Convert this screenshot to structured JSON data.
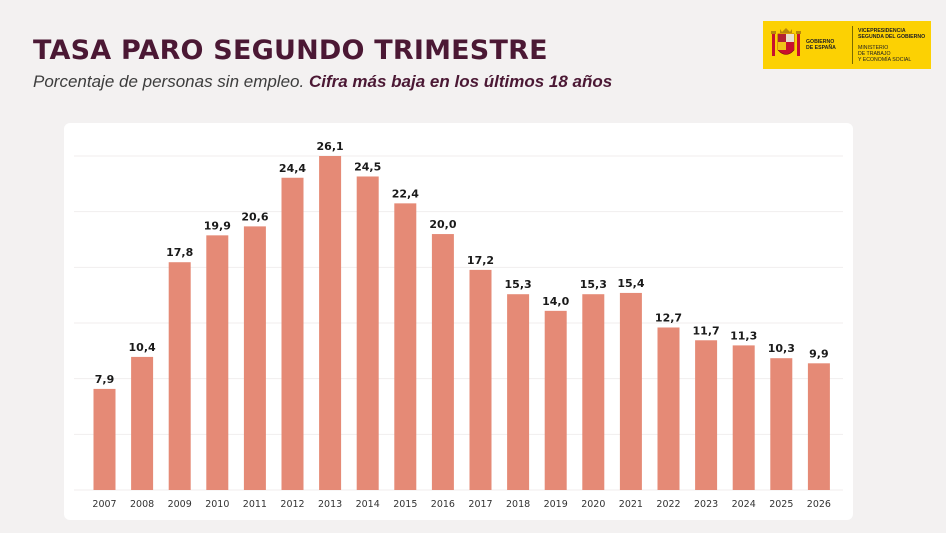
{
  "header": {
    "title": "TASA PARO SEGUNDO TRIMESTRE",
    "subtitle_plain": "Porcentaje de personas sin empleo.",
    "subtitle_bold": "Cifra más baja en los últimos 18 años"
  },
  "logo": {
    "left_line1": "GOBIERNO",
    "left_line2": "DE ESPAÑA",
    "right_line1": "VICEPRESIDENCIA",
    "right_line2": "SEGUNDA DEL GOBIERNO",
    "right_line3": "MINISTERIO",
    "right_line4": "DE TRABAJO",
    "right_line5": "Y ECONOMÍA SOCIAL",
    "background_color": "#fcd103"
  },
  "chart_data": {
    "type": "bar",
    "categories": [
      "2007",
      "2008",
      "2009",
      "2010",
      "2011",
      "2012",
      "2013",
      "2014",
      "2015",
      "2016",
      "2017",
      "2018",
      "2019",
      "2020",
      "2021",
      "2022",
      "2023",
      "2024",
      "2025",
      "2026"
    ],
    "values": [
      7.9,
      10.4,
      17.8,
      19.9,
      20.6,
      24.4,
      26.1,
      24.5,
      22.4,
      20.0,
      17.2,
      15.3,
      14.0,
      15.3,
      15.4,
      12.7,
      11.7,
      11.3,
      10.3,
      9.9
    ],
    "value_labels": [
      "7,9",
      "10,4",
      "17,8",
      "19,9",
      "20,6",
      "24,4",
      "26,1",
      "24,5",
      "22,4",
      "20,0",
      "17,2",
      "15,3",
      "14,0",
      "15,3",
      "15,4",
      "12,7",
      "11,7",
      "11,3",
      "10,3",
      "9,9"
    ],
    "ylim": [
      0,
      26.1
    ],
    "grid": true,
    "bar_color": "#e58a76",
    "title": "",
    "xlabel": "",
    "ylabel": ""
  }
}
